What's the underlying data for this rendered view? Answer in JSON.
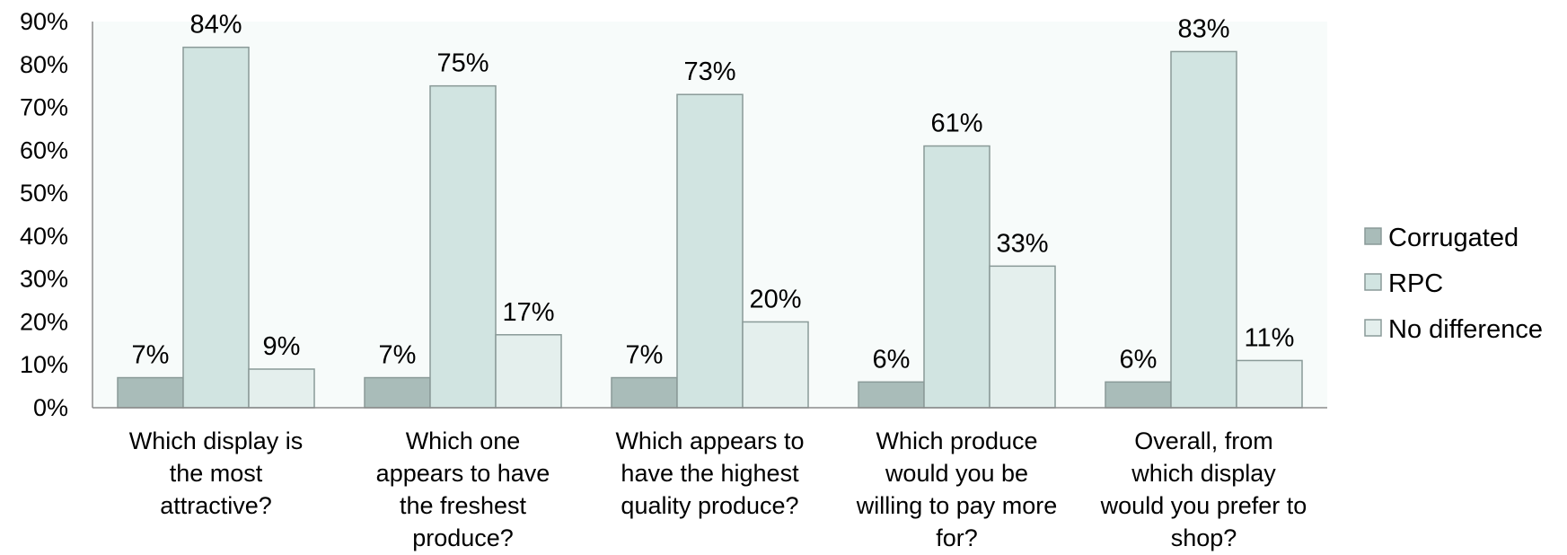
{
  "chart_data": {
    "type": "bar",
    "title": "",
    "xlabel": "",
    "ylabel": "",
    "ylim": [
      0,
      90
    ],
    "yticks": [
      "0%",
      "10%",
      "20%",
      "30%",
      "40%",
      "50%",
      "60%",
      "70%",
      "80%",
      "90%"
    ],
    "categories": [
      [
        "Which display is",
        "the most",
        "attractive?"
      ],
      [
        "Which one",
        "appears to have",
        "the freshest",
        "produce?"
      ],
      [
        "Which appears to",
        "have the highest",
        "quality produce?"
      ],
      [
        "Which produce",
        "would you be",
        "willing to pay more",
        "for?"
      ],
      [
        "Overall, from",
        "which display",
        "would you prefer to",
        "shop?"
      ]
    ],
    "series": [
      {
        "name": "Corrugated",
        "color": "#a9bcb9",
        "values": [
          7,
          7,
          7,
          6,
          6
        ],
        "labels": [
          "7%",
          "7%",
          "7%",
          "6%",
          "6%"
        ]
      },
      {
        "name": "RPC",
        "color": "#d1e4e1",
        "values": [
          84,
          75,
          73,
          61,
          83
        ],
        "labels": [
          "84%",
          "75%",
          "73%",
          "61%",
          "83%"
        ]
      },
      {
        "name": "No difference",
        "color": "#e4efed",
        "values": [
          9,
          17,
          20,
          33,
          11
        ],
        "labels": [
          "9%",
          "17%",
          "20%",
          "33%",
          "11%"
        ]
      }
    ],
    "legend_position": "right",
    "plot_background": "#f7fbfa",
    "bar_stroke": "#8a9a98"
  }
}
